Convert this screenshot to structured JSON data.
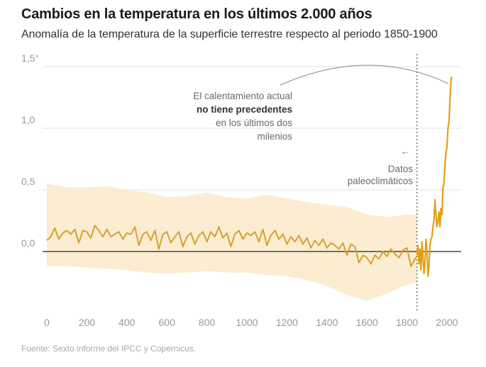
{
  "header": {
    "title": "Cambios en la temperatura en los últimos 2.000 años",
    "subtitle": "Anomalía de la temperatura de la superficie terrestre respecto al periodo 1850-1900"
  },
  "footer": {
    "source": "Fuente: Sexto informe del IPCC y Copernicus."
  },
  "annotations": {
    "warming_line1": "El calentamiento actual",
    "warming_line2": "no tiene precedentes",
    "warming_line3": "en los últimos dos",
    "warming_line4": "milenios",
    "paleo_arrow": "←",
    "paleo_line1": "Datos",
    "paleo_line2": "paleoclimáticos"
  },
  "colors": {
    "paleo_line": "#d9a031",
    "band": "#fbecd2",
    "instrumental_line": "#e2a117",
    "grid": "#e3e3e3",
    "zero_line": "#222222",
    "divider": "#555555"
  },
  "chart_data": {
    "type": "line",
    "title": "Cambios en la temperatura en los últimos 2.000 años",
    "subtitle": "Anomalía de la temperatura de la superficie terrestre respecto al periodo 1850-1900",
    "xlabel": "",
    "ylabel": "",
    "xlim": [
      0,
      2020
    ],
    "ylim": [
      -0.45,
      1.5
    ],
    "x_ticks": [
      0,
      200,
      400,
      600,
      800,
      1000,
      1200,
      1400,
      1600,
      1800,
      2000
    ],
    "y_ticks": [
      {
        "value": 0.0,
        "label": "0,0"
      },
      {
        "value": 0.5,
        "label": "0,5"
      },
      {
        "value": 1.0,
        "label": "1,0"
      },
      {
        "value": 1.5,
        "label": "1,5°"
      }
    ],
    "grid": "horizontal",
    "divider_year": 1850,
    "series": [
      {
        "x": [
          0,
          20,
          40,
          60,
          80,
          100,
          120,
          140,
          160,
          180,
          200,
          220,
          240,
          260,
          280,
          300,
          320,
          340,
          360,
          380,
          400,
          420,
          440,
          460,
          480,
          500,
          520,
          540,
          560,
          580,
          600,
          620,
          640,
          660,
          680,
          700,
          720,
          740,
          760,
          780,
          800,
          820,
          840,
          860,
          880,
          900,
          920,
          940,
          960,
          980,
          1000,
          1020,
          1040,
          1060,
          1080,
          1100,
          1120,
          1140,
          1160,
          1180,
          1200,
          1220,
          1240,
          1260,
          1280,
          1300,
          1320,
          1340,
          1360,
          1380,
          1400,
          1420,
          1440,
          1460,
          1480,
          1500,
          1520,
          1540,
          1560,
          1580,
          1600,
          1620,
          1640,
          1660,
          1680,
          1700,
          1720,
          1740,
          1760,
          1780,
          1800,
          1820,
          1840,
          1850
        ],
        "y": [
          0.09,
          0.12,
          0.19,
          0.1,
          0.15,
          0.17,
          0.14,
          0.18,
          0.07,
          0.17,
          0.16,
          0.11,
          0.21,
          0.17,
          0.12,
          0.18,
          0.12,
          0.14,
          0.16,
          0.1,
          0.15,
          0.14,
          0.2,
          0.05,
          0.14,
          0.16,
          0.09,
          0.17,
          0.02,
          0.14,
          0.16,
          0.07,
          0.12,
          0.16,
          0.04,
          0.12,
          0.15,
          0.06,
          0.13,
          0.16,
          0.08,
          0.16,
          0.12,
          0.2,
          0.11,
          0.15,
          0.04,
          0.14,
          0.17,
          0.1,
          0.15,
          0.13,
          0.16,
          0.08,
          0.18,
          0.05,
          0.13,
          0.17,
          0.1,
          0.14,
          0.06,
          0.12,
          0.08,
          0.13,
          0.06,
          0.11,
          0.03,
          0.09,
          0.05,
          0.1,
          0.03,
          0.07,
          0.05,
          0.02,
          0.07,
          -0.03,
          0.06,
          0.04,
          -0.09,
          -0.03,
          -0.05,
          -0.1,
          -0.03,
          -0.06,
          0.0,
          -0.04,
          0.02,
          -0.02,
          -0.05,
          0.01,
          0.03,
          -0.12,
          -0.06,
          -0.04
        ]
      },
      {
        "x": [
          1850,
          1855,
          1860,
          1865,
          1870,
          1875,
          1880,
          1885,
          1890,
          1895,
          1900,
          1905,
          1910,
          1915,
          1920,
          1925,
          1930,
          1935,
          1940,
          1945,
          1950,
          1955,
          1960,
          1965,
          1970,
          1975,
          1980,
          1985,
          1990,
          1995,
          2000,
          2005,
          2010,
          2015,
          2020,
          2023
        ],
        "y": [
          -0.03,
          0.05,
          -0.1,
          0.02,
          -0.15,
          0.08,
          -0.05,
          -0.18,
          -0.08,
          0.1,
          0.0,
          -0.2,
          -0.12,
          0.05,
          0.1,
          0.12,
          0.2,
          0.25,
          0.42,
          0.3,
          0.2,
          0.25,
          0.32,
          0.2,
          0.35,
          0.3,
          0.52,
          0.55,
          0.72,
          0.8,
          0.85,
          1.0,
          1.05,
          1.22,
          1.38,
          1.42
        ]
      }
    ],
    "uncertainty_band": {
      "x": [
        0,
        100,
        200,
        300,
        400,
        500,
        600,
        700,
        800,
        900,
        1000,
        1100,
        1200,
        1300,
        1400,
        1500,
        1600,
        1700,
        1800,
        1850
      ],
      "lower": [
        -0.12,
        -0.12,
        -0.13,
        -0.14,
        -0.15,
        -0.17,
        -0.18,
        -0.17,
        -0.16,
        -0.17,
        -0.17,
        -0.19,
        -0.2,
        -0.23,
        -0.28,
        -0.35,
        -0.4,
        -0.34,
        -0.27,
        -0.25
      ],
      "upper": [
        0.55,
        0.52,
        0.52,
        0.53,
        0.5,
        0.48,
        0.44,
        0.45,
        0.48,
        0.44,
        0.43,
        0.46,
        0.43,
        0.4,
        0.38,
        0.36,
        0.3,
        0.28,
        0.3,
        0.3
      ]
    }
  }
}
